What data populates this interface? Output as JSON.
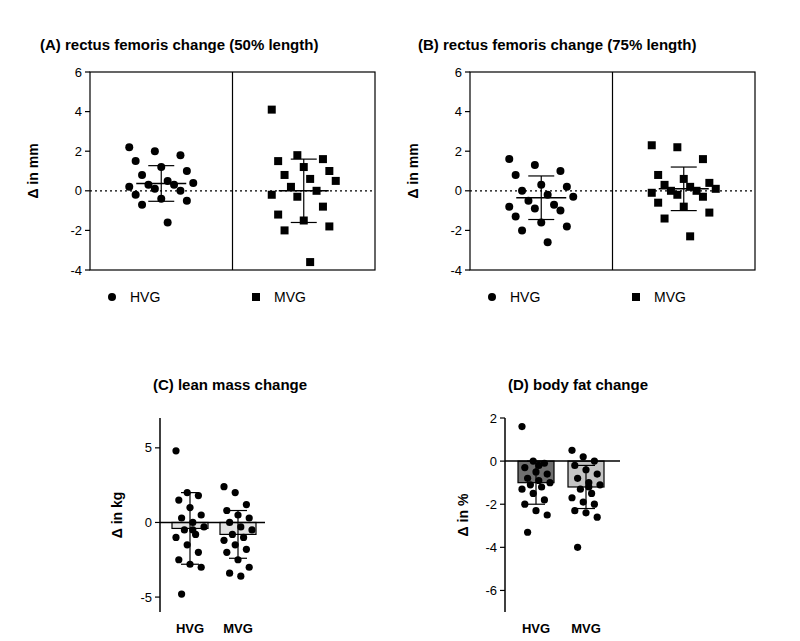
{
  "chart_data": [
    {
      "type": "scatter",
      "title": "(A) rectus femoris change (50% length)",
      "y_label": "Δ in mm",
      "ylim": [
        -4,
        6
      ],
      "yticks": [
        -4,
        -2,
        0,
        2,
        4,
        6
      ],
      "legend": "bottom",
      "tick_labels": "y",
      "series": [
        {
          "name": "HVG",
          "marker": "circle",
          "color": "#000000",
          "values": [
            2.2,
            2.0,
            1.8,
            1.5,
            1.2,
            1.0,
            0.8,
            0.5,
            0.4,
            0.3,
            0.3,
            0.2,
            0.1,
            0.0,
            -0.2,
            -0.4,
            -0.5,
            -0.7,
            -1.6
          ],
          "mean": 0.37,
          "sd": 0.9
        },
        {
          "name": "MVG",
          "marker": "square",
          "color": "#000000",
          "values": [
            4.1,
            1.8,
            1.6,
            1.5,
            1.2,
            1.0,
            0.8,
            0.6,
            0.5,
            0.2,
            0.0,
            -0.2,
            -0.3,
            -0.8,
            -1.2,
            -1.5,
            -1.8,
            -2.0,
            -3.6
          ],
          "mean": 0.0,
          "sd": 1.6
        }
      ]
    },
    {
      "type": "scatter",
      "title": "(B) rectus femoris change (75% length)",
      "y_label": "Δ in mm",
      "ylim": [
        -4,
        6
      ],
      "yticks": [
        -4,
        -2,
        0,
        2,
        4,
        6
      ],
      "legend": "bottom",
      "tick_labels": "y",
      "series": [
        {
          "name": "HVG",
          "marker": "circle",
          "color": "#000000",
          "values": [
            1.6,
            1.3,
            1.0,
            0.8,
            0.3,
            0.2,
            0.0,
            -0.2,
            -0.3,
            -0.5,
            -0.7,
            -0.8,
            -0.9,
            -1.0,
            -1.3,
            -1.6,
            -1.8,
            -2.0,
            -2.6
          ],
          "mean": -0.35,
          "sd": 1.1
        },
        {
          "name": "MVG",
          "marker": "square",
          "color": "#000000",
          "values": [
            2.3,
            2.2,
            1.6,
            0.8,
            0.6,
            0.4,
            0.3,
            0.2,
            0.1,
            0.0,
            0.0,
            -0.1,
            -0.2,
            -0.3,
            -0.6,
            -0.8,
            -1.1,
            -1.4,
            -2.3
          ],
          "mean": 0.1,
          "sd": 1.1
        }
      ]
    },
    {
      "type": "bar",
      "title": "(C) lean mass change",
      "y_label": "Δ in kg",
      "categories": [
        "HVG",
        "MVG"
      ],
      "values": [
        -0.4,
        -0.8
      ],
      "errors": [
        2.4,
        1.6
      ],
      "colors": [
        "#e3e3e3",
        "#e3e3e3"
      ],
      "points": [
        [
          4.8,
          2.0,
          1.8,
          1.5,
          1.0,
          0.5,
          0.3,
          0.0,
          -0.3,
          -0.5,
          -0.8,
          -1.0,
          -1.5,
          -2.0,
          -2.5,
          -2.8,
          -3.0,
          -4.8,
          -0.5
        ],
        [
          2.4,
          2.0,
          1.2,
          0.8,
          0.5,
          0.3,
          0.0,
          -0.3,
          -0.5,
          -0.8,
          -1.0,
          -1.2,
          -1.5,
          -1.8,
          -2.0,
          -2.5,
          -3.0,
          -3.4,
          -3.6
        ]
      ],
      "ylim": [
        -6,
        7
      ],
      "yticks": [
        -5,
        0,
        5
      ]
    },
    {
      "type": "bar",
      "title": "(D) body fat change",
      "y_label": "Δ in %",
      "categories": [
        "HVG",
        "MVG"
      ],
      "values": [
        -1.0,
        -1.2
      ],
      "errors": [
        1.0,
        1.0
      ],
      "colors": [
        "#6f6f6f",
        "#c4c4c4"
      ],
      "points": [
        [
          1.6,
          0.0,
          -0.1,
          -0.3,
          -0.5,
          -0.6,
          -0.8,
          -0.9,
          -1.0,
          -1.1,
          -1.2,
          -1.3,
          -1.5,
          -1.8,
          -2.0,
          -2.3,
          -2.5,
          -3.3,
          -0.2
        ],
        [
          0.5,
          0.2,
          0.0,
          -0.2,
          -0.4,
          -0.6,
          -0.8,
          -1.0,
          -1.1,
          -1.3,
          -1.5,
          -1.7,
          -1.9,
          -2.0,
          -2.3,
          -2.4,
          -2.6,
          -4.0,
          -1.2
        ]
      ],
      "ylim": [
        -7,
        2
      ],
      "yticks": [
        -6,
        -4,
        -2,
        0,
        2
      ]
    }
  ]
}
